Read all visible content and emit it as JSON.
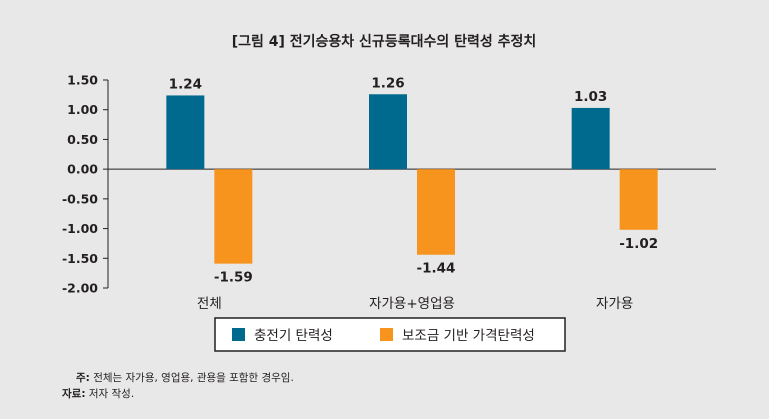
{
  "chart_data": {
    "type": "bar",
    "title": "[그림 4] 전기승용차 신규등록대수의 탄력성 추정치",
    "categories": [
      "전체",
      "자가용+영업용",
      "자가용"
    ],
    "series": [
      {
        "name": "충전기 탄력성",
        "values": [
          1.24,
          1.26,
          1.03
        ],
        "color": "#006a8e"
      },
      {
        "name": "보조금 기반 가격탄력성",
        "values": [
          -1.59,
          -1.44,
          -1.02
        ],
        "color": "#f7941d"
      }
    ],
    "data_labels": [
      [
        "1.24",
        "1.26",
        "1.03"
      ],
      [
        "-1.59",
        "-1.44",
        "-1.02"
      ]
    ],
    "ylim": [
      -2.0,
      1.5
    ],
    "yticks": [
      1.5,
      1.0,
      0.5,
      0.0,
      -0.5,
      -1.0,
      -1.5,
      -2.0
    ],
    "ytick_labels": [
      "1.50",
      "1.00",
      "0.50",
      "0.00",
      "-0.50",
      "-1.00",
      "-1.50",
      "-2.00"
    ],
    "xlabel": "",
    "ylabel": "",
    "grid": false,
    "legend_position": "bottom-center"
  },
  "notes": {
    "note_label": "주:",
    "note_text": " 전체는 자가용, 영업용, 관용을 포함한 경우임.",
    "source_label": "자료:",
    "source_text": " 저자 작성."
  },
  "colors": {
    "background": "#e8e8e8",
    "text": "#231f20"
  }
}
